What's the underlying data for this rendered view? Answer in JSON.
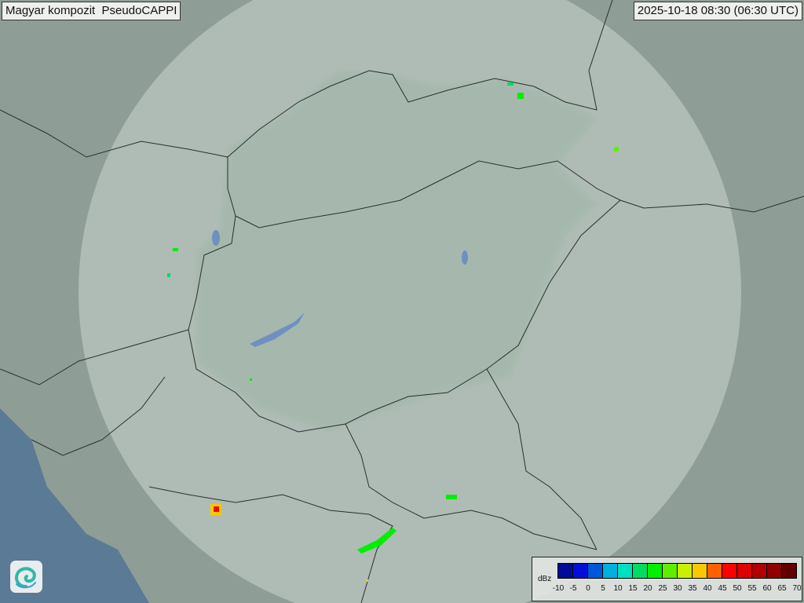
{
  "header": {
    "title": "Magyar kompozit  PseudoCAPPI",
    "timestamp": "2025-10-18 08:30 (06:30 UTC)"
  },
  "legend": {
    "unit": "dBz",
    "ticks": [
      "-10",
      "-5",
      "0",
      "5",
      "10",
      "15",
      "20",
      "25",
      "30",
      "35",
      "40",
      "45",
      "50",
      "55",
      "60",
      "65",
      "70"
    ],
    "colors": [
      "#000c96",
      "#0010d8",
      "#0058d8",
      "#00b0e0",
      "#00e0c0",
      "#00dd60",
      "#00ee00",
      "#60ee00",
      "#c8f000",
      "#f8c800",
      "#ff6000",
      "#ff0000",
      "#dd0000",
      "#b00000",
      "#900000",
      "#600000"
    ]
  },
  "logo": {
    "icon": "swirl-logo-icon"
  },
  "map": {
    "land_color": "#8e9e96",
    "coverage_color": "#c8d6cf",
    "sea_color": "#5a7a95"
  }
}
